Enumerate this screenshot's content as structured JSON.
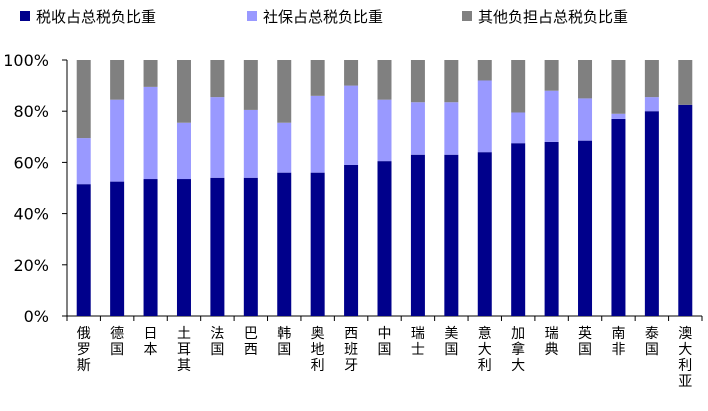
{
  "chart_data": {
    "type": "bar",
    "stacked": true,
    "percent_axis": true,
    "categories": [
      "俄罗斯",
      "德国",
      "日本",
      "土耳其",
      "法国",
      "巴西",
      "韩国",
      "奥地利",
      "西班牙",
      "中国",
      "瑞士",
      "美国",
      "意大利",
      "加拿大",
      "瑞典",
      "英国",
      "南非",
      "泰国",
      "澳大利亚"
    ],
    "series": [
      {
        "name": "税收占总税负比重",
        "color": "#00008B",
        "values": [
          51.5,
          52.5,
          53.5,
          53.5,
          54,
          54,
          56,
          56,
          59,
          60.5,
          63,
          63,
          64,
          67.5,
          68,
          68.5,
          77,
          80,
          82.5
        ]
      },
      {
        "name": "社保占总税负比重",
        "color": "#9999FF",
        "values": [
          18,
          32,
          36,
          22,
          31.5,
          26.5,
          19.5,
          30,
          31,
          24,
          20.5,
          20.5,
          28,
          12,
          20,
          16.5,
          2,
          5.5,
          0
        ]
      },
      {
        "name": "其他负担占总税负比重",
        "color": "#808080",
        "values": [
          30.5,
          15.5,
          10.5,
          24.5,
          14.5,
          19.5,
          24.5,
          14,
          10,
          15.5,
          16.5,
          16.5,
          8,
          20.5,
          12,
          15,
          21,
          14.5,
          17.5
        ]
      }
    ],
    "ylim": [
      0,
      100
    ],
    "yticks": [
      "0%",
      "20%",
      "40%",
      "60%",
      "80%",
      "100%"
    ],
    "legend_position": "top"
  }
}
